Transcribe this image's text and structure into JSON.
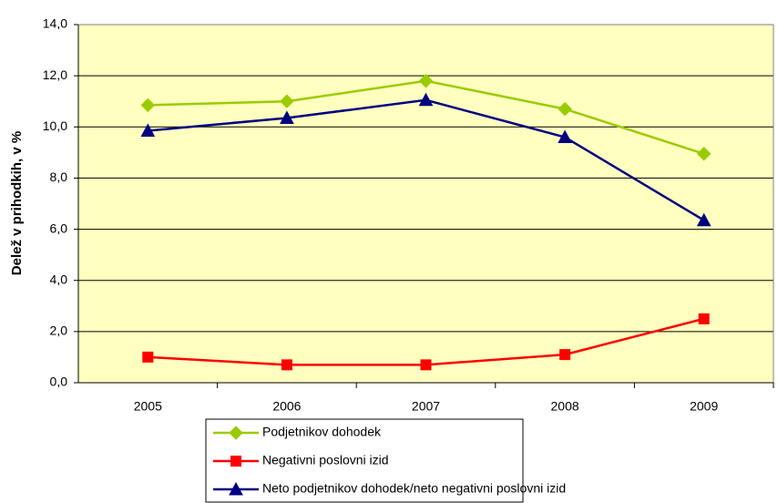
{
  "chart_data": {
    "type": "line",
    "y_label": "Delež v prihodkih, v %",
    "categories": [
      "2005",
      "2006",
      "2007",
      "2008",
      "2009"
    ],
    "series": [
      {
        "name": "Podjetnikov dohodek",
        "color": "#99cc00",
        "marker": "diamond",
        "values": [
          10.85,
          11.0,
          11.8,
          10.7,
          8.95
        ]
      },
      {
        "name": "Negativni poslovni izid",
        "color": "#ff0000",
        "marker": "square",
        "values": [
          1.0,
          0.7,
          0.7,
          1.1,
          2.5
        ]
      },
      {
        "name": "Neto podjetnikov dohodek/neto negativni poslovni izid",
        "color": "#000080",
        "marker": "triangle",
        "values": [
          9.85,
          10.35,
          11.05,
          9.6,
          6.35
        ]
      }
    ],
    "ylim": [
      0,
      14
    ],
    "yticks": [
      {
        "value": 0,
        "label": "0,0"
      },
      {
        "value": 2,
        "label": "2,0"
      },
      {
        "value": 4,
        "label": "4,0"
      },
      {
        "value": 6,
        "label": "6,0"
      },
      {
        "value": 8,
        "label": "8,0"
      },
      {
        "value": 10,
        "label": "10,0"
      },
      {
        "value": 12,
        "label": "12,0"
      },
      {
        "value": 14,
        "label": "14,0"
      }
    ],
    "grid": true,
    "legend": "bottom",
    "plot_background": "#ffffc0"
  }
}
